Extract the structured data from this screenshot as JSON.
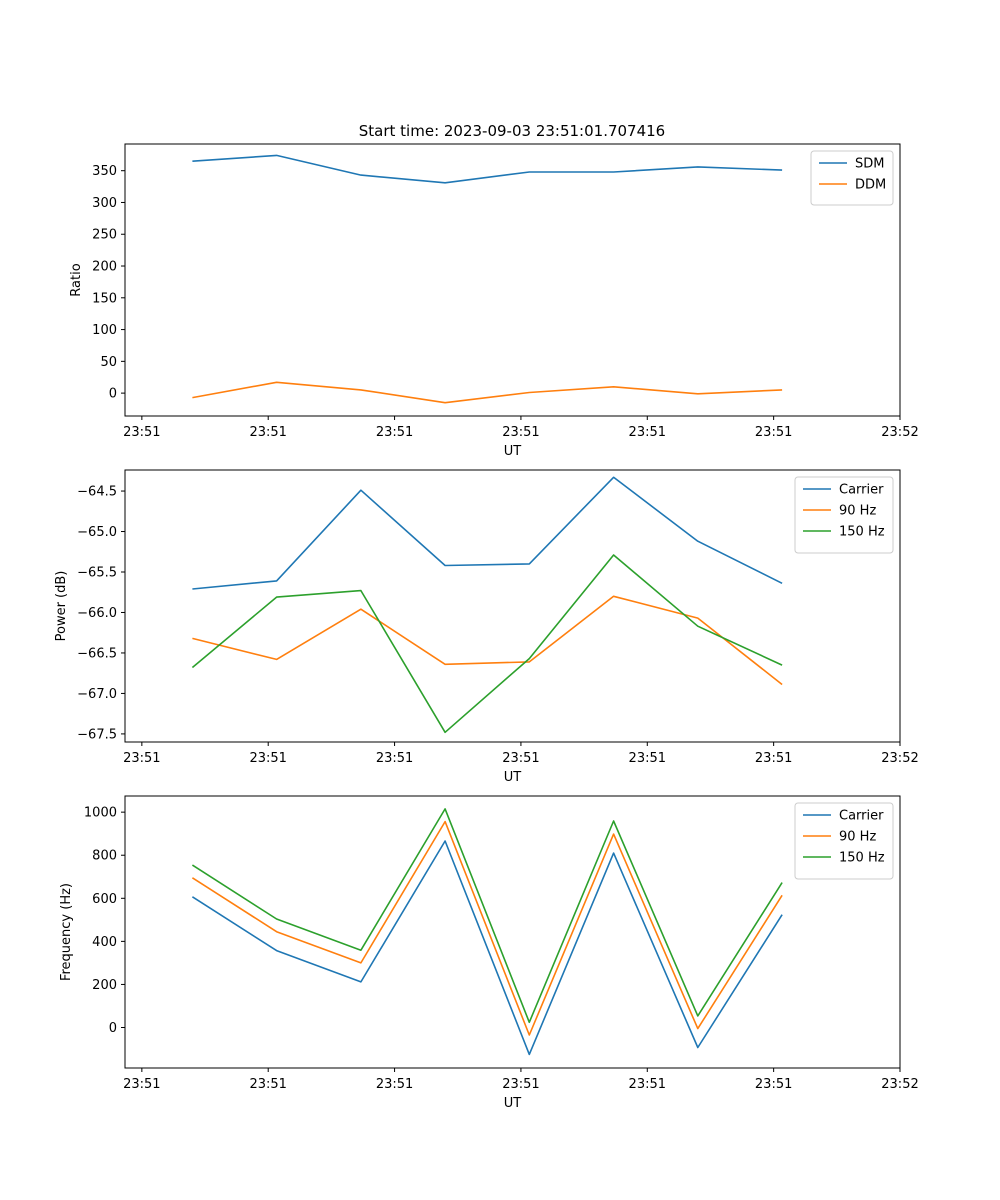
{
  "figure_title": "Start time: 2023-09-03 23:51:01.707416",
  "chart_data": [
    {
      "type": "line",
      "ylabel": "Ratio",
      "xlabel": "UT",
      "x": [
        1,
        2,
        3,
        4,
        5,
        6,
        7,
        8
      ],
      "xlim": [
        0.2,
        9.4
      ],
      "xticks": [
        0.4,
        1.9,
        3.4,
        4.9,
        6.4,
        7.9,
        9.4
      ],
      "xtick_labels": [
        "23:51",
        "23:51",
        "23:51",
        "23:51",
        "23:51",
        "23:51",
        "23:52"
      ],
      "ylim": [
        -36,
        392
      ],
      "yticks": [
        0,
        50,
        100,
        150,
        200,
        250,
        300,
        350
      ],
      "ytick_labels": [
        "0",
        "50",
        "100",
        "150",
        "200",
        "250",
        "300",
        "350"
      ],
      "series": [
        {
          "name": "SDM",
          "color": "#1f77b4",
          "values": [
            365,
            374,
            343,
            331,
            348,
            348,
            356,
            351
          ]
        },
        {
          "name": "DDM",
          "color": "#ff7f0e",
          "values": [
            -7,
            17,
            5,
            -15,
            1,
            10,
            -1,
            5
          ]
        }
      ]
    },
    {
      "type": "line",
      "ylabel": "Power (dB)",
      "xlabel": "UT",
      "x": [
        1,
        2,
        3,
        4,
        5,
        6,
        7,
        8
      ],
      "xlim": [
        0.2,
        9.4
      ],
      "xticks": [
        0.4,
        1.9,
        3.4,
        4.9,
        6.4,
        7.9,
        9.4
      ],
      "xtick_labels": [
        "23:51",
        "23:51",
        "23:51",
        "23:51",
        "23:51",
        "23:51",
        "23:52"
      ],
      "ylim": [
        -67.6,
        -64.24
      ],
      "yticks": [
        -67.5,
        -67.0,
        -66.5,
        -66.0,
        -65.5,
        -65.0,
        -64.5
      ],
      "ytick_labels": [
        "−67.5",
        "−67.0",
        "−66.5",
        "−66.0",
        "−65.5",
        "−65.0",
        "−64.5"
      ],
      "series": [
        {
          "name": "Carrier",
          "color": "#1f77b4",
          "values": [
            -65.71,
            -65.61,
            -64.49,
            -65.42,
            -65.4,
            -64.33,
            -65.12,
            -65.64
          ]
        },
        {
          "name": "90 Hz",
          "color": "#ff7f0e",
          "values": [
            -66.32,
            -66.58,
            -65.96,
            -66.64,
            -66.61,
            -65.8,
            -66.07,
            -66.89
          ]
        },
        {
          "name": "150 Hz",
          "color": "#2ca02c",
          "values": [
            -66.68,
            -65.81,
            -65.73,
            -67.48,
            -66.57,
            -65.29,
            -66.17,
            -66.65
          ]
        }
      ]
    },
    {
      "type": "line",
      "ylabel": "Frequency (Hz)",
      "xlabel": "UT",
      "x": [
        1,
        2,
        3,
        4,
        5,
        6,
        7,
        8
      ],
      "xlim": [
        0.2,
        9.4
      ],
      "xticks": [
        0.4,
        1.9,
        3.4,
        4.9,
        6.4,
        7.9,
        9.4
      ],
      "xtick_labels": [
        "23:51",
        "23:51",
        "23:51",
        "23:51",
        "23:51",
        "23:51",
        "23:52"
      ],
      "ylim": [
        -188,
        1075
      ],
      "yticks": [
        0,
        200,
        400,
        600,
        800,
        1000
      ],
      "ytick_labels": [
        "0",
        "200",
        "400",
        "600",
        "800",
        "1000"
      ],
      "series": [
        {
          "name": "Carrier",
          "color": "#1f77b4",
          "values": [
            607,
            357,
            212,
            866,
            -125,
            810,
            -93,
            524
          ]
        },
        {
          "name": "90 Hz",
          "color": "#ff7f0e",
          "values": [
            695,
            445,
            300,
            956,
            -35,
            898,
            -5,
            614
          ]
        },
        {
          "name": "150 Hz",
          "color": "#2ca02c",
          "values": [
            754,
            504,
            359,
            1015,
            24,
            959,
            54,
            673
          ]
        }
      ]
    }
  ]
}
